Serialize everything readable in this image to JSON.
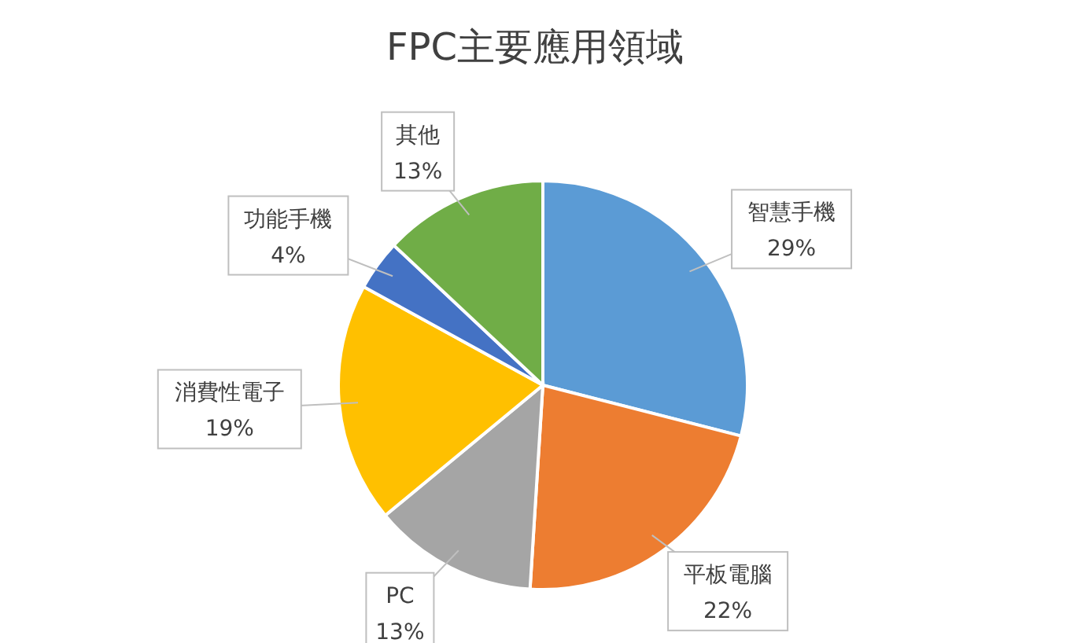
{
  "chart_data": {
    "type": "pie",
    "title": "FPC主要應用領域",
    "categories": [
      "智慧手機",
      "平板電腦",
      "PC",
      "消費性電子",
      "功能手機",
      "其他"
    ],
    "values": [
      29,
      22,
      13,
      19,
      4,
      13
    ],
    "value_labels": [
      "29%",
      "22%",
      "13%",
      "19%",
      "4%",
      "13%"
    ],
    "colors": [
      "#5b9bd5",
      "#ed7d31",
      "#a5a5a5",
      "#ffc000",
      "#4472c4",
      "#70ad47"
    ],
    "legend": false
  }
}
